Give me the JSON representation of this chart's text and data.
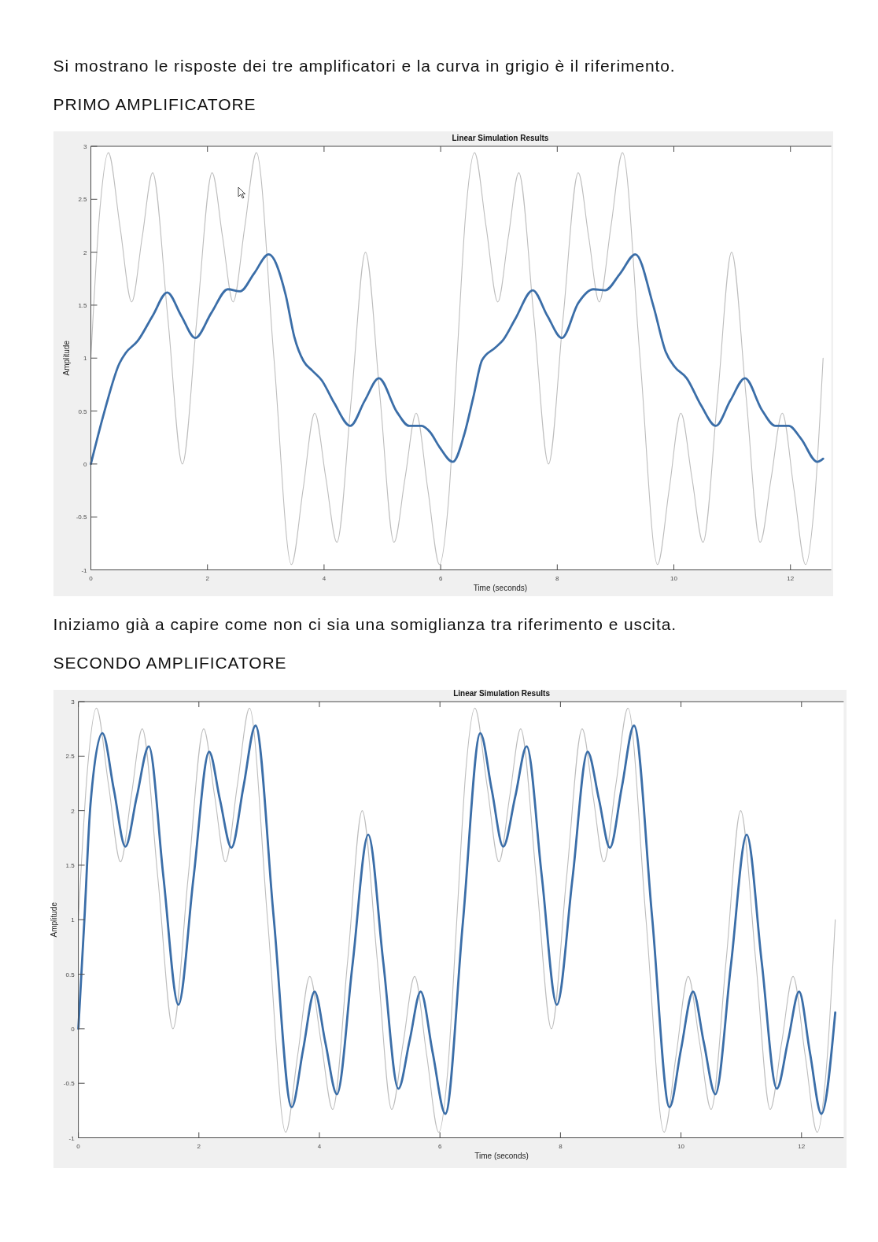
{
  "chart_data": [
    {
      "type": "line",
      "title": "Linear Simulation Results",
      "xlabel": "Time (seconds)",
      "ylabel": "Amplitude",
      "annotations": [
        "Si mostrano le risposte dei tre amplificatori e la curva in grigio è il riferimento.",
        "PRIMO AMPLIFICATORE"
      ],
      "xlim": [
        0,
        12.7
      ],
      "ylim": [
        -1,
        3
      ],
      "xticks": [
        0,
        2,
        4,
        6,
        8,
        10,
        12
      ],
      "yticks": [
        -1,
        -0.5,
        0,
        0.5,
        1,
        1.5,
        2,
        2.5,
        3
      ],
      "series": [
        {
          "color": "#bdbdbd",
          "x": [
            0,
            0.15,
            0.3,
            0.5,
            0.7,
            0.88,
            1.06,
            1.32,
            1.57,
            1.82,
            2.08,
            2.26,
            2.44,
            2.64,
            2.84,
            3.14,
            3.44,
            3.64,
            3.84,
            4.03,
            4.22,
            4.47,
            4.71,
            4.96,
            5.2,
            5.39,
            5.58,
            5.78,
            5.98,
            6.13,
            6.28,
            6.43,
            6.58,
            6.78,
            6.98,
            7.16,
            7.34,
            7.6,
            7.85,
            8.1,
            8.36,
            8.54,
            8.72,
            8.92,
            9.12,
            9.42,
            9.72,
            9.92,
            10.12,
            10.31,
            10.5,
            10.75,
            10.99,
            11.24,
            11.48,
            11.67,
            11.86,
            12.06,
            12.26,
            12.41,
            12.56
          ],
          "values": [
            1,
            2.37,
            2.94,
            2.24,
            1.53,
            2.14,
            2.75,
            1.38,
            0,
            1.38,
            2.75,
            2.14,
            1.53,
            2.24,
            2.94,
            1,
            -0.95,
            -0.24,
            0.48,
            -0.13,
            -0.74,
            0.63,
            2,
            0.63,
            -0.74,
            -0.13,
            0.48,
            -0.24,
            -0.95,
            -0.38,
            1,
            2.37,
            2.94,
            2.24,
            1.53,
            2.14,
            2.75,
            1.38,
            0,
            1.38,
            2.75,
            2.14,
            1.53,
            2.24,
            2.94,
            1,
            -0.95,
            -0.24,
            0.48,
            -0.13,
            -0.74,
            0.63,
            2,
            0.63,
            -0.74,
            -0.13,
            0.48,
            -0.24,
            -0.95,
            -0.38,
            1
          ]
        },
        {
          "color": "#3b6ea8",
          "x": [
            0,
            0.23,
            0.49,
            0.6,
            0.8,
            1.06,
            1.31,
            1.55,
            1.79,
            2.07,
            2.35,
            2.56,
            2.8,
            3.05,
            3.34,
            3.49,
            3.65,
            3.8,
            3.96,
            4.17,
            4.45,
            4.7,
            4.94,
            5.25,
            5.46,
            5.67,
            5.82,
            5.98,
            6.21,
            6.4,
            6.56,
            6.71,
            6.94,
            7.07,
            7.28,
            7.58,
            7.83,
            8.08,
            8.36,
            8.62,
            8.82,
            9.08,
            9.34,
            9.65,
            9.86,
            10.01,
            10.22,
            10.47,
            10.72,
            10.97,
            11.22,
            11.51,
            11.74,
            11.97,
            12.18,
            12.46,
            12.56
          ],
          "values": [
            0,
            0.49,
            0.95,
            1.05,
            1.16,
            1.4,
            1.62,
            1.4,
            1.19,
            1.43,
            1.65,
            1.63,
            1.8,
            1.98,
            1.6,
            1.2,
            0.97,
            0.88,
            0.79,
            0.58,
            0.36,
            0.6,
            0.81,
            0.49,
            0.36,
            0.36,
            0.3,
            0.16,
            0.02,
            0.27,
            0.63,
            0.98,
            1.1,
            1.17,
            1.37,
            1.64,
            1.4,
            1.19,
            1.52,
            1.65,
            1.64,
            1.8,
            1.98,
            1.49,
            1.06,
            0.92,
            0.81,
            0.55,
            0.36,
            0.6,
            0.81,
            0.51,
            0.36,
            0.36,
            0.24,
            0.02,
            0.05
          ]
        }
      ]
    },
    {
      "type": "line",
      "title": "Linear Simulation Results",
      "xlabel": "Time (seconds)",
      "ylabel": "Amplitude",
      "annotations": [
        "Iniziamo già a capire come non ci sia una somiglianza tra riferimento e uscita.",
        "SECONDO AMPLIFICATORE"
      ],
      "xlim": [
        0,
        12.7
      ],
      "ylim": [
        -1,
        3
      ],
      "xticks": [
        0,
        2,
        4,
        6,
        8,
        10,
        12
      ],
      "yticks": [
        -1,
        -0.5,
        0,
        0.5,
        1,
        1.5,
        2,
        2.5,
        3
      ],
      "series": [
        {
          "color": "#bdbdbd",
          "x": [
            0,
            0.15,
            0.3,
            0.5,
            0.7,
            0.88,
            1.06,
            1.32,
            1.57,
            1.82,
            2.08,
            2.26,
            2.44,
            2.64,
            2.84,
            3.14,
            3.44,
            3.64,
            3.84,
            4.03,
            4.22,
            4.47,
            4.71,
            4.96,
            5.2,
            5.39,
            5.58,
            5.78,
            5.98,
            6.13,
            6.28,
            6.43,
            6.58,
            6.78,
            6.98,
            7.16,
            7.34,
            7.6,
            7.85,
            8.1,
            8.36,
            8.54,
            8.72,
            8.92,
            9.12,
            9.42,
            9.72,
            9.92,
            10.12,
            10.31,
            10.5,
            10.75,
            10.99,
            11.24,
            11.48,
            11.67,
            11.86,
            12.06,
            12.26,
            12.41,
            12.56
          ],
          "values": [
            1,
            2.37,
            2.94,
            2.24,
            1.53,
            2.14,
            2.75,
            1.38,
            0,
            1.38,
            2.75,
            2.14,
            1.53,
            2.24,
            2.94,
            1,
            -0.95,
            -0.24,
            0.48,
            -0.13,
            -0.74,
            0.63,
            2,
            0.63,
            -0.74,
            -0.13,
            0.48,
            -0.24,
            -0.95,
            -0.38,
            1,
            2.37,
            2.94,
            2.24,
            1.53,
            2.14,
            2.75,
            1.38,
            0,
            1.38,
            2.75,
            2.14,
            1.53,
            2.24,
            2.94,
            1,
            -0.95,
            -0.24,
            0.48,
            -0.13,
            -0.74,
            0.63,
            2,
            0.63,
            -0.74,
            -0.13,
            0.48,
            -0.24,
            -0.95,
            -0.38,
            1
          ]
        },
        {
          "color": "#3b6ea8",
          "x": [
            0,
            0.1,
            0.2,
            0.4,
            0.59,
            0.78,
            0.97,
            1.17,
            1.41,
            1.66,
            1.91,
            2.17,
            2.35,
            2.54,
            2.74,
            2.94,
            3.24,
            3.54,
            3.73,
            3.92,
            4.1,
            4.29,
            4.55,
            4.81,
            5.06,
            5.31,
            5.5,
            5.68,
            5.88,
            6.09,
            6.38,
            6.67,
            6.86,
            7.05,
            7.25,
            7.44,
            7.69,
            7.94,
            8.2,
            8.45,
            8.64,
            8.82,
            9.02,
            9.22,
            9.52,
            9.81,
            10,
            10.2,
            10.38,
            10.57,
            10.83,
            11.09,
            11.34,
            11.59,
            11.78,
            11.96,
            12.14,
            12.33,
            12.56
          ],
          "values": [
            0,
            1,
            2.05,
            2.71,
            2.19,
            1.67,
            2.13,
            2.59,
            1.4,
            0.22,
            1.38,
            2.54,
            2.1,
            1.66,
            2.22,
            2.78,
            1.03,
            -0.72,
            -0.19,
            0.34,
            -0.13,
            -0.6,
            0.59,
            1.78,
            0.61,
            -0.55,
            -0.1,
            0.34,
            -0.22,
            -0.78,
            0.97,
            2.71,
            2.19,
            1.67,
            2.13,
            2.59,
            1.4,
            0.22,
            1.38,
            2.54,
            2.1,
            1.66,
            2.22,
            2.78,
            1.03,
            -0.72,
            -0.19,
            0.34,
            -0.13,
            -0.6,
            0.59,
            1.78,
            0.61,
            -0.55,
            -0.1,
            0.34,
            -0.22,
            -0.78,
            0.15
          ]
        }
      ]
    }
  ]
}
